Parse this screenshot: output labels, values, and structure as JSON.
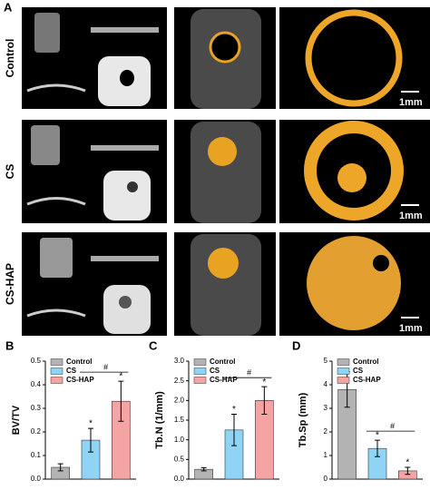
{
  "panel_a": {
    "label": "A",
    "rows": [
      "Control",
      "CS",
      "CS-HAP"
    ],
    "scale_bar": "1mm"
  },
  "chart_data": [
    {
      "type": "bar",
      "panel": "B",
      "ylabel": "BV/TV",
      "categories": [
        "Control",
        "CS",
        "CS-HAP"
      ],
      "colors": [
        "#b3b3b3",
        "#8fd4f5",
        "#f5a3a3"
      ],
      "values": [
        0.05,
        0.165,
        0.33
      ],
      "errors": [
        0.015,
        0.05,
        0.085
      ],
      "ylim": [
        0,
        0.5
      ],
      "yticks": [
        {
          "value": 0,
          "label": "0.0"
        },
        0.1,
        0.2,
        0.3,
        0.4,
        0.5
      ],
      "significance": {
        "star": "*",
        "star_categories": [
          "CS",
          "CS-HAP"
        ],
        "bracket": "#",
        "bracket_categories": [
          "CS",
          "CS-HAP"
        ]
      }
    },
    {
      "type": "bar",
      "panel": "C",
      "ylabel": "Tb.N (1/mm)",
      "categories": [
        "Control",
        "CS",
        "CS-HAP"
      ],
      "colors": [
        "#b3b3b3",
        "#8fd4f5",
        "#f5a3a3"
      ],
      "values": [
        0.25,
        1.25,
        2.0
      ],
      "errors": [
        0.04,
        0.4,
        0.35
      ],
      "ylim": [
        0,
        3
      ],
      "yticks": [
        {
          "value": 0,
          "label": "0.0"
        },
        0.5,
        {
          "value": 1,
          "label": "1.0"
        },
        1.5,
        {
          "value": 2,
          "label": "2.0"
        },
        2.5,
        {
          "value": 3,
          "label": "3.0"
        }
      ],
      "significance": {
        "star": "*",
        "star_categories": [
          "CS",
          "CS-HAP"
        ],
        "bracket": "#",
        "bracket_categories": [
          "CS",
          "CS-HAP"
        ]
      }
    },
    {
      "type": "bar",
      "panel": "D",
      "ylabel": "Tb.Sp (mm)",
      "categories": [
        "Control",
        "CS",
        "CS-HAP"
      ],
      "colors": [
        "#b3b3b3",
        "#8fd4f5",
        "#f5a3a3"
      ],
      "values": [
        3.8,
        1.3,
        0.35
      ],
      "errors": [
        0.75,
        0.35,
        0.15
      ],
      "ylim": [
        0,
        5
      ],
      "yticks": [
        0,
        1,
        2,
        3,
        4,
        5
      ],
      "significance": {
        "star": "*",
        "star_categories": [
          "CS",
          "CS-HAP"
        ],
        "bracket": "#",
        "bracket_categories": [
          "CS",
          "CS-HAP"
        ]
      }
    }
  ]
}
